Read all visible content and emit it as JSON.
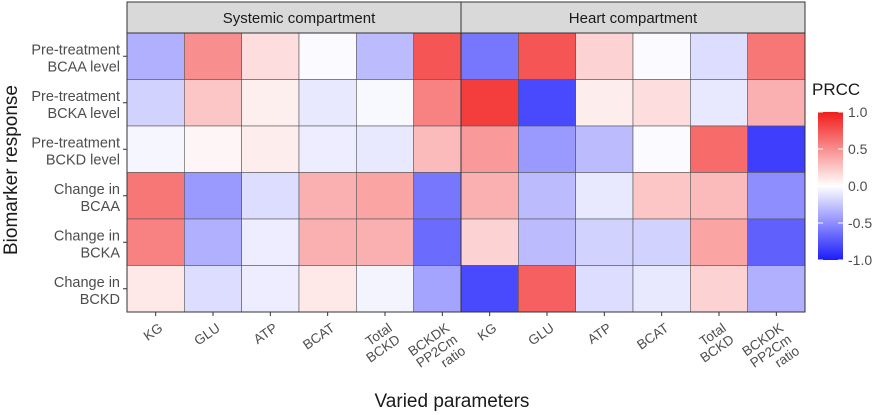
{
  "chart_data": {
    "type": "heatmap",
    "title": "",
    "xlabel": "Varied parameters",
    "ylabel": "Biomarker response",
    "facets": [
      "Systemic compartment",
      "Heart compartment"
    ],
    "x_categories": [
      [
        "KG"
      ],
      [
        "GLU"
      ],
      [
        "ATP"
      ],
      [
        "BCAT"
      ],
      [
        "Total",
        "BCKD"
      ],
      [
        "BCKDK",
        "PP2Cm",
        "ratio"
      ]
    ],
    "y_categories": [
      [
        "Pre-treatment",
        "BCAA level"
      ],
      [
        "Pre-treatment",
        "BCKA level"
      ],
      [
        "Pre-treatment",
        "BCKD level"
      ],
      [
        "Change in",
        "BCAA"
      ],
      [
        "Change in",
        "BCKA"
      ],
      [
        "Change in",
        "BCKD"
      ]
    ],
    "values": {
      "Systemic compartment": [
        [
          -0.35,
          0.5,
          0.15,
          -0.02,
          -0.3,
          0.75
        ],
        [
          -0.2,
          0.25,
          0.07,
          -0.1,
          -0.03,
          0.55
        ],
        [
          -0.04,
          0.04,
          0.08,
          -0.08,
          -0.1,
          0.3
        ],
        [
          0.6,
          -0.45,
          -0.15,
          0.35,
          0.4,
          -0.6
        ],
        [
          0.55,
          -0.35,
          -0.08,
          0.35,
          0.35,
          -0.65
        ],
        [
          0.1,
          -0.15,
          -0.08,
          0.1,
          -0.05,
          -0.4
        ]
      ],
      "Heart compartment": [
        [
          -0.6,
          0.75,
          0.2,
          -0.02,
          -0.15,
          0.6
        ],
        [
          0.85,
          -0.8,
          0.08,
          0.15,
          -0.1,
          0.35
        ],
        [
          0.45,
          -0.45,
          -0.3,
          -0.02,
          0.65,
          -0.85
        ],
        [
          0.35,
          -0.3,
          -0.1,
          0.25,
          0.3,
          -0.5
        ],
        [
          0.2,
          -0.3,
          -0.2,
          -0.2,
          0.4,
          -0.7
        ],
        [
          -0.8,
          0.7,
          -0.15,
          -0.1,
          0.2,
          -0.35
        ]
      ]
    },
    "color_scale": {
      "title": "PRCC",
      "low_color": "#1c1cfc",
      "mid_color": "#ffffff",
      "high_color": "#f21c1c",
      "range": [
        -1.0,
        1.0
      ],
      "ticks": [
        "1.0",
        "0.5",
        "0.0",
        "-0.5",
        "-1.0"
      ],
      "tick_values": [
        1.0,
        0.5,
        0.0,
        -0.5,
        -1.0
      ]
    },
    "legend_position": "right"
  }
}
